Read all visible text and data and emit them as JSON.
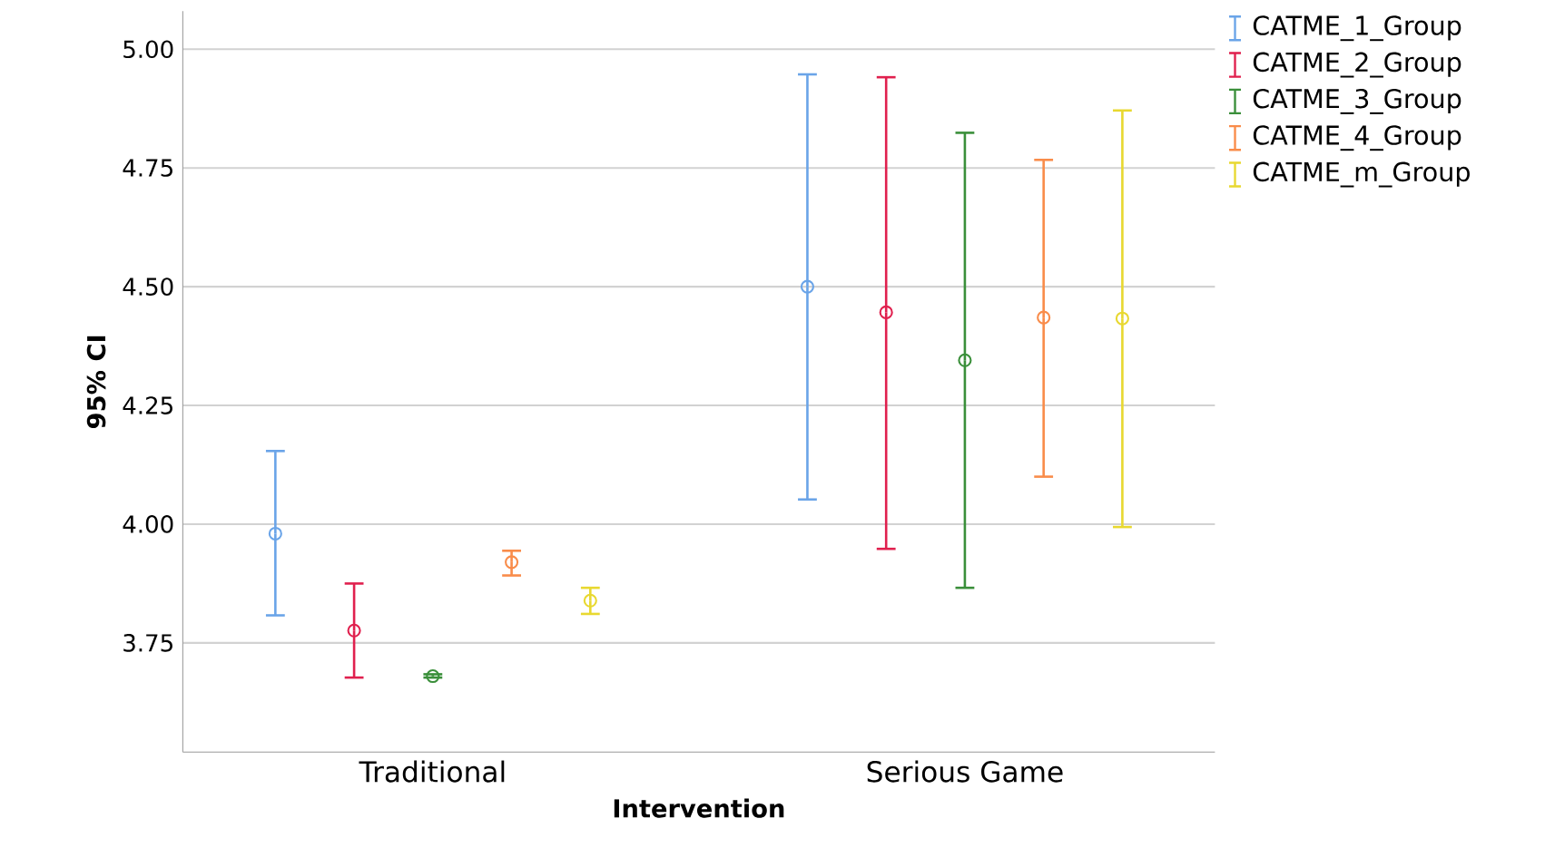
{
  "chart_data": {
    "type": "scatter",
    "xlabel": "Intervention",
    "ylabel": "95% CI",
    "categories": [
      "Traditional",
      "Serious Game"
    ],
    "series": [
      {
        "name": "CATME_1_Group",
        "color": "#6aa4e8",
        "values": [
          3.98,
          4.5
        ],
        "errors": [
          [
            3.808,
            4.154
          ],
          [
            4.052,
            4.947
          ]
        ]
      },
      {
        "name": "CATME_2_Group",
        "color": "#e0204e",
        "values": [
          3.776,
          4.446
        ],
        "errors": [
          [
            3.677,
            3.875
          ],
          [
            3.948,
            4.941
          ]
        ]
      },
      {
        "name": "CATME_3_Group",
        "color": "#3a8f3a",
        "values": [
          3.68,
          4.345
        ],
        "errors": [
          [
            3.677,
            3.684
          ],
          [
            3.866,
            4.824
          ]
        ]
      },
      {
        "name": "CATME_4_Group",
        "color": "#f98c4a",
        "values": [
          3.92,
          4.435
        ],
        "errors": [
          [
            3.892,
            3.944
          ],
          [
            4.1,
            4.767
          ]
        ]
      },
      {
        "name": "CATME_m_Group",
        "color": "#e8d830",
        "values": [
          3.839,
          4.433
        ],
        "errors": [
          [
            3.811,
            3.866
          ],
          [
            3.994,
            4.871
          ]
        ]
      }
    ],
    "ylim": [
      3.52,
      5.08
    ],
    "yticks": [
      {
        "value": 3.75,
        "label": "3.75"
      },
      {
        "value": 4.0,
        "label": "4.00"
      },
      {
        "value": 4.25,
        "label": "4.25"
      },
      {
        "value": 4.5,
        "label": "4.50"
      },
      {
        "value": 4.75,
        "label": "4.75"
      },
      {
        "value": 5.0,
        "label": "5.00"
      }
    ],
    "grid": "y",
    "legend": "top right",
    "marker": "circle"
  }
}
